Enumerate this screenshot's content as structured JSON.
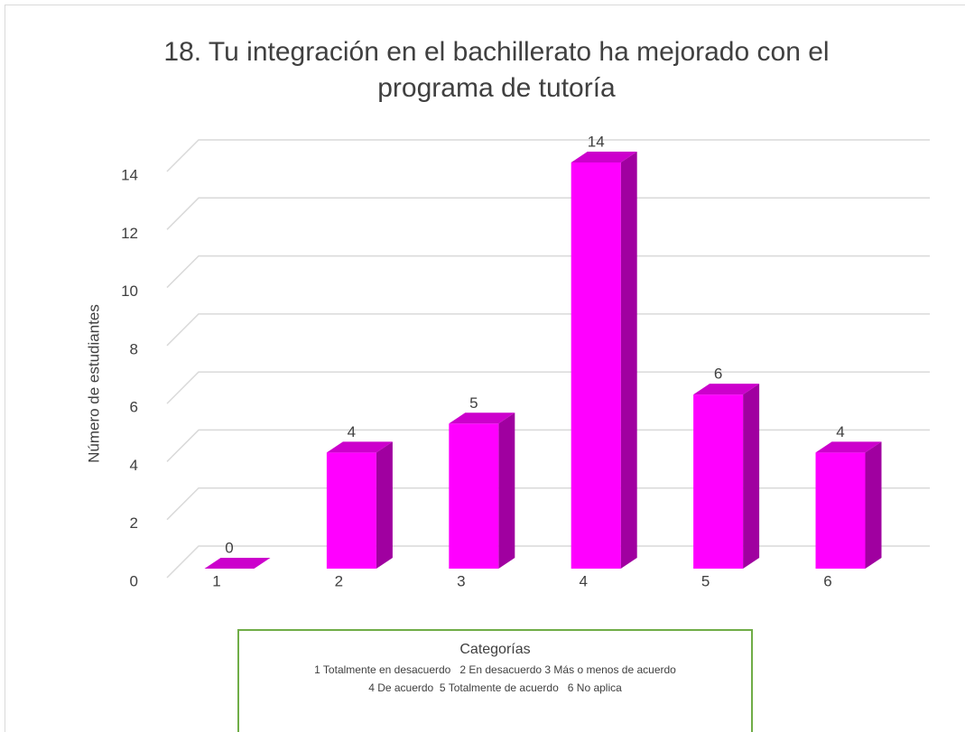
{
  "chart_data": {
    "type": "bar3d",
    "title": "18. Tu integración en el bachillerato ha mejorado con el programa de tutoría",
    "y_label": "Número de estudiantes",
    "categories": [
      "1",
      "2",
      "3",
      "4",
      "5",
      "6"
    ],
    "values": [
      0,
      4,
      5,
      14,
      6,
      4
    ],
    "color": "#ff00ff",
    "ylim": [
      0,
      14
    ],
    "yticks": [
      0,
      2,
      4,
      6,
      8,
      10,
      12,
      14
    ],
    "grid": true,
    "legend_box": {
      "title": "Categorías",
      "lines": [
        "1 Totalmente en desacuerdo   2 En desacuerdo 3 Más o menos de acuerdo",
        "4 De acuerdo  5 Totalmente de acuerdo   6 No aplica"
      ]
    }
  }
}
